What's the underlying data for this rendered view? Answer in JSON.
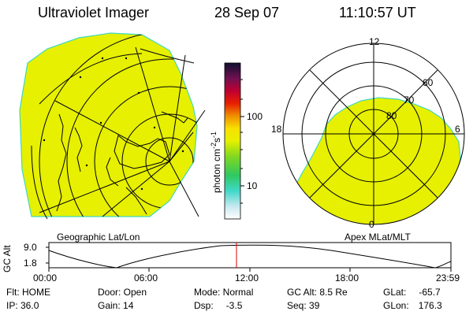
{
  "header": {
    "instrument": "Ultraviolet Imager",
    "date": "28 Sep 07",
    "time": "11:10:57 UT"
  },
  "geo_panel": {
    "label": "Geographic Lat/Lon"
  },
  "polar_panel": {
    "label": "Apex MLat/MLT",
    "mlt_labels": {
      "top": "12",
      "left": "18",
      "right": "6",
      "bottom": "0"
    },
    "lat_labels": [
      "60",
      "70",
      "80"
    ]
  },
  "colorbar": {
    "label": "photon cm",
    "label_exp1": "-2",
    "label_mid": "s",
    "label_exp2": "-1",
    "ticks": [
      "100",
      "10"
    ]
  },
  "altitude_plot": {
    "ylabel": "GC Alt",
    "yticks": [
      "9.0",
      "1.8"
    ],
    "xticks": [
      "00:00",
      "06:00",
      "12:00",
      "18:00",
      "23:59"
    ],
    "current_time_fraction": 0.4666
  },
  "status": {
    "flt": "Flt: HOME",
    "ip": "IP: 36.0",
    "door": "Door: Open",
    "gain": "Gain: 14",
    "mode": "Mode: Normal",
    "dsp_label": "Dsp:",
    "dsp_value": "-3.5",
    "gc_alt": "GC Alt: 8.5 Re",
    "seq": "Seq: 39",
    "glat_label": "GLat:",
    "glat_value": "-65.7",
    "glon_label": "GLon:",
    "glon_value": "176.3"
  },
  "colors": {
    "aurora_fill": "#e6f000",
    "aurora_edge": "#40d8c0",
    "marker_red": "#e00000"
  }
}
